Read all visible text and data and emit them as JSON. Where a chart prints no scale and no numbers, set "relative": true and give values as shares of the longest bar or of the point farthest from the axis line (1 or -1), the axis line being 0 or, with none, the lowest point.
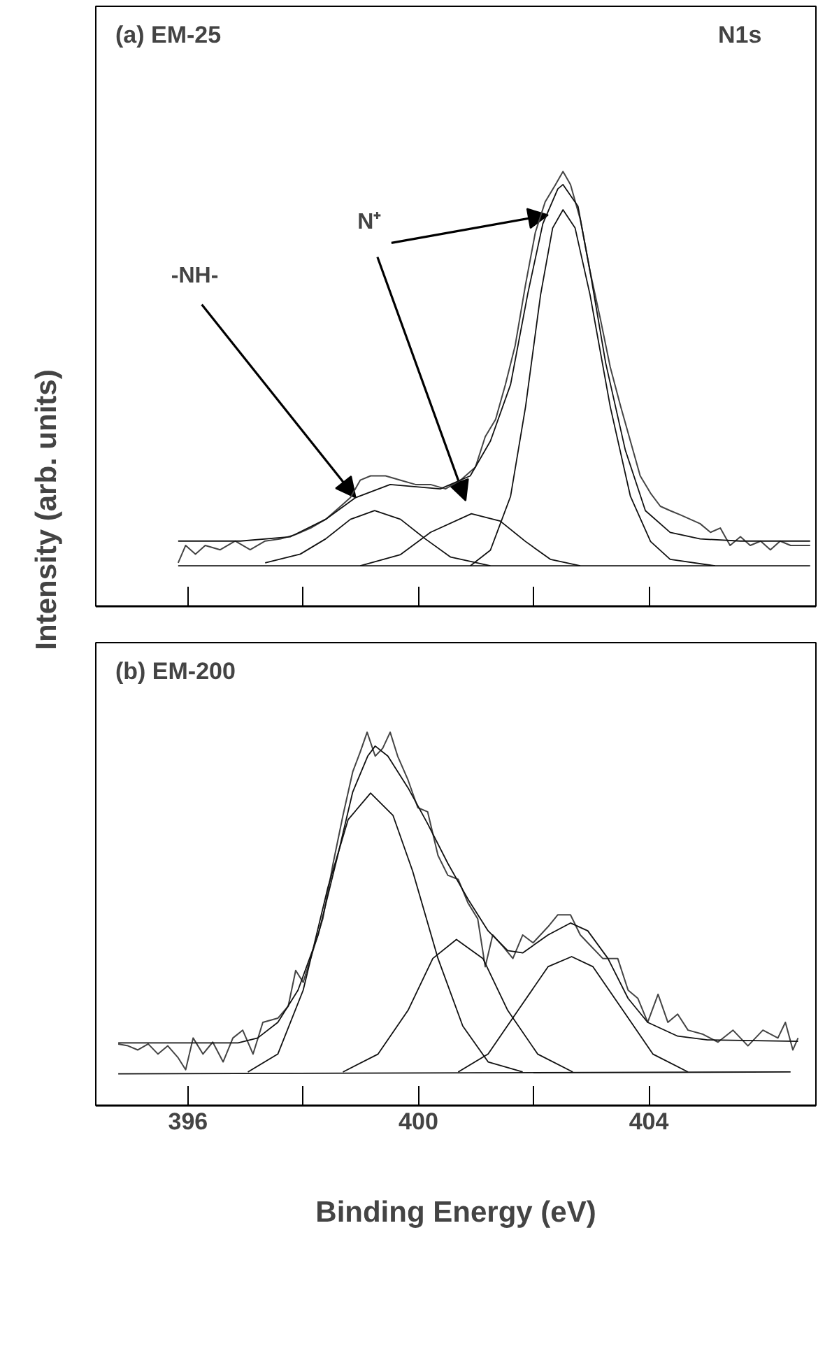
{
  "chart_data": [
    {
      "type": "line",
      "ylabel": "Intensity (arb. units)",
      "relative": true,
      "tick_labels": false,
      "grid": false,
      "xlim": [
        394.4,
        406.9
      ],
      "xticks": [
        {
          "value": 396,
          "label": null
        },
        {
          "value": 398,
          "label": null
        },
        {
          "value": 400,
          "label": null
        },
        {
          "value": 402,
          "label": null
        },
        {
          "value": 404,
          "label": null
        }
      ],
      "annotations": [
        "(a) EM-25",
        "N1s",
        {
          "text": "-NH-",
          "x": 398.91,
          "y": 0.25
        },
        {
          "text": "N⁺",
          "x": 402.25,
          "y": 0.9
        }
      ],
      "series": [
        {
          "color": "#444444",
          "x": [
            395.83,
            395.96,
            396.13,
            396.3,
            396.56,
            396.82,
            397.08,
            397.34,
            397.61,
            397.87,
            398.13,
            398.39,
            398.65,
            398.82,
            398.99,
            399.17,
            399.43,
            399.69,
            399.95,
            400.21,
            400.47,
            400.73,
            400.99,
            401.16,
            401.34,
            401.51,
            401.68,
            401.86,
            402.03,
            402.2,
            402.38,
            402.51,
            402.64,
            402.81,
            402.98,
            403.16,
            403.33,
            403.51,
            403.68,
            403.85,
            404.03,
            404.2,
            404.37,
            404.55,
            404.72,
            404.89,
            405.07,
            405.24,
            405.41,
            405.59,
            405.76,
            405.94,
            406.11,
            406.28,
            406.46,
            406.8
          ],
          "values": [
            0.1,
            0.14,
            0.12,
            0.14,
            0.13,
            0.15,
            0.13,
            0.15,
            0.155,
            0.165,
            0.18,
            0.2,
            0.23,
            0.25,
            0.29,
            0.3,
            0.3,
            0.29,
            0.28,
            0.28,
            0.27,
            0.29,
            0.32,
            0.39,
            0.43,
            0.51,
            0.6,
            0.74,
            0.86,
            0.93,
            0.97,
            1.0,
            0.97,
            0.89,
            0.77,
            0.66,
            0.55,
            0.46,
            0.38,
            0.3,
            0.26,
            0.23,
            0.22,
            0.21,
            0.2,
            0.19,
            0.17,
            0.18,
            0.14,
            0.16,
            0.14,
            0.15,
            0.13,
            0.15,
            0.14,
            0.14
          ]
        },
        {
          "color": "#111111",
          "x": [
            395.83,
            396.91,
            397.78,
            398.39,
            398.91,
            399.51,
            400.38,
            400.9,
            401.25,
            401.6,
            401.9,
            402.16,
            402.42,
            402.51,
            402.77,
            402.98,
            403.25,
            403.59,
            403.94,
            404.37,
            404.89,
            405.59,
            406.8
          ],
          "values": [
            0.15,
            0.15,
            0.16,
            0.2,
            0.25,
            0.28,
            0.27,
            0.3,
            0.38,
            0.51,
            0.72,
            0.88,
            0.96,
            0.97,
            0.92,
            0.77,
            0.56,
            0.36,
            0.22,
            0.17,
            0.155,
            0.15,
            0.15
          ]
        },
        {
          "color": "#111111",
          "x": [
            395.83,
            406.8
          ],
          "values": [
            0.093,
            0.093
          ]
        },
        {
          "color": "#111111",
          "x": [
            397.34,
            397.95,
            398.39,
            398.82,
            399.24,
            399.69,
            400.12,
            400.56,
            401.25
          ],
          "values": [
            0.1,
            0.12,
            0.155,
            0.2,
            0.22,
            0.2,
            0.155,
            0.113,
            0.093
          ]
        },
        {
          "color": "#111111",
          "x": [
            398.99,
            399.69,
            400.21,
            400.92,
            401.42,
            401.86,
            402.29,
            402.81
          ],
          "values": [
            0.093,
            0.119,
            0.17,
            0.213,
            0.196,
            0.149,
            0.108,
            0.093
          ]
        },
        {
          "color": "#111111",
          "x": [
            400.9,
            401.25,
            401.6,
            401.86,
            402.12,
            402.33,
            402.51,
            402.72,
            402.98,
            403.33,
            403.68,
            404.03,
            404.37,
            405.15
          ],
          "values": [
            0.093,
            0.129,
            0.253,
            0.459,
            0.716,
            0.87,
            0.912,
            0.87,
            0.716,
            0.459,
            0.253,
            0.149,
            0.108,
            0.093
          ]
        }
      ]
    },
    {
      "type": "line",
      "xlabel": "Binding Energy (eV)",
      "relative": true,
      "tick_labels": "x",
      "grid": false,
      "xlim": [
        394.4,
        406.9
      ],
      "xticks": [
        396,
        {
          "value": 398,
          "label": null
        },
        400,
        {
          "value": 402,
          "label": null
        },
        404
      ],
      "annotations": [
        "(b) EM-200"
      ],
      "series": [
        {
          "color": "#444444",
          "x": [
            394.79,
            394.96,
            395.13,
            395.31,
            395.48,
            395.65,
            395.83,
            395.96,
            396.09,
            396.26,
            396.43,
            396.61,
            396.78,
            396.95,
            397.13,
            397.3,
            397.56,
            397.74,
            397.87,
            398.0,
            398.17,
            398.34,
            398.52,
            398.69,
            398.86,
            398.99,
            399.11,
            399.25,
            399.38,
            399.51,
            399.64,
            399.82,
            399.99,
            400.16,
            400.34,
            400.51,
            400.69,
            400.86,
            401.03,
            401.16,
            401.29,
            401.47,
            401.64,
            401.81,
            401.99,
            402.25,
            402.42,
            402.64,
            402.81,
            402.94,
            403.2,
            403.46,
            403.64,
            403.81,
            403.98,
            404.16,
            404.33,
            404.5,
            404.68,
            404.94,
            405.2,
            405.46,
            405.72,
            405.98,
            406.24,
            406.37,
            406.5,
            406.59
          ],
          "values": [
            0.165,
            0.16,
            0.149,
            0.165,
            0.138,
            0.16,
            0.128,
            0.096,
            0.181,
            0.138,
            0.17,
            0.117,
            0.181,
            0.202,
            0.138,
            0.223,
            0.234,
            0.266,
            0.362,
            0.33,
            0.415,
            0.5,
            0.649,
            0.777,
            0.894,
            0.947,
            1.0,
            0.936,
            0.957,
            1.0,
            0.936,
            0.872,
            0.798,
            0.787,
            0.67,
            0.617,
            0.606,
            0.543,
            0.5,
            0.372,
            0.457,
            0.426,
            0.394,
            0.457,
            0.436,
            0.479,
            0.511,
            0.511,
            0.457,
            0.436,
            0.394,
            0.394,
            0.309,
            0.287,
            0.223,
            0.298,
            0.223,
            0.245,
            0.202,
            0.191,
            0.17,
            0.202,
            0.16,
            0.202,
            0.181,
            0.223,
            0.149,
            0.181
          ]
        },
        {
          "color": "#111111",
          "x": [
            394.79,
            396.87,
            397.21,
            397.56,
            397.91,
            398.26,
            398.6,
            398.86,
            399.12,
            399.25,
            399.47,
            399.82,
            400.16,
            400.51,
            400.86,
            401.21,
            401.55,
            401.81,
            402.25,
            402.64,
            402.94,
            403.29,
            403.64,
            403.98,
            404.5,
            405.02,
            406.59
          ],
          "values": [
            0.168,
            0.168,
            0.181,
            0.223,
            0.309,
            0.457,
            0.67,
            0.84,
            0.936,
            0.963,
            0.936,
            0.851,
            0.755,
            0.649,
            0.553,
            0.468,
            0.415,
            0.409,
            0.457,
            0.489,
            0.468,
            0.394,
            0.287,
            0.223,
            0.186,
            0.176,
            0.172
          ]
        },
        {
          "color": "#111111",
          "x": [
            394.79,
            406.46
          ],
          "values": [
            0.085,
            0.09
          ]
        },
        {
          "color": "#111111",
          "x": [
            397.04,
            397.56,
            398.0,
            398.43,
            398.78,
            399.17,
            399.56,
            399.9,
            400.34,
            400.77,
            401.21,
            401.81
          ],
          "values": [
            0.09,
            0.138,
            0.309,
            0.585,
            0.766,
            0.837,
            0.777,
            0.628,
            0.394,
            0.213,
            0.117,
            0.09
          ]
        },
        {
          "color": "#111111",
          "x": [
            398.69,
            399.3,
            399.82,
            400.25,
            400.66,
            401.12,
            401.55,
            402.07,
            402.68
          ],
          "values": [
            0.09,
            0.138,
            0.255,
            0.394,
            0.445,
            0.394,
            0.255,
            0.138,
            0.09
          ]
        },
        {
          "color": "#111111",
          "x": [
            400.69,
            401.21,
            401.73,
            402.25,
            402.66,
            403.03,
            403.55,
            404.07,
            404.68
          ],
          "values": [
            0.09,
            0.138,
            0.255,
            0.372,
            0.399,
            0.372,
            0.255,
            0.138,
            0.09
          ]
        }
      ]
    }
  ]
}
